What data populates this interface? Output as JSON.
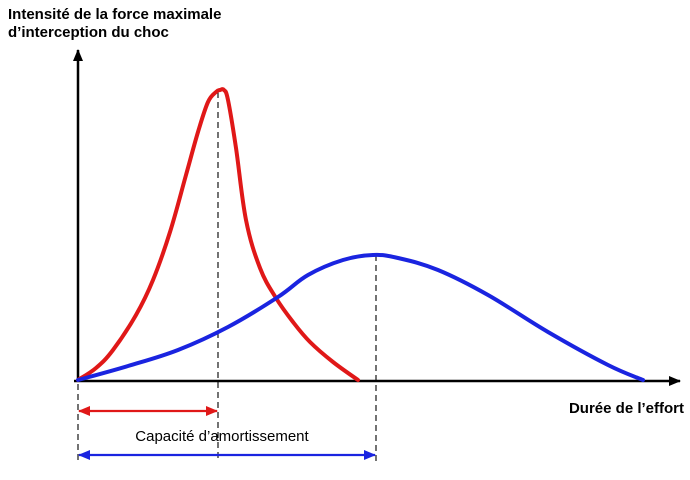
{
  "chart_data": {
    "type": "line",
    "ylabel_lines": [
      "Intensité de la force maximale",
      "d’interception du choc"
    ],
    "xlabel": "Durée de l’effort",
    "annotation": "Capacité d’amortissement",
    "xlim": [
      0,
      605
    ],
    "ylim": [
      0,
      290
    ],
    "grid": false,
    "legend": "none",
    "colors": {
      "axes": "#000000",
      "red_series": "#e01818",
      "blue_series": "#1a24e0",
      "red_arrow": "#e01818",
      "blue_arrow": "#1a24e0"
    },
    "series": [
      {
        "color_key": "red_series",
        "x": [
          0,
          18,
          35,
          58,
          75,
          92,
          108,
          120,
          130,
          138,
          142,
          146,
          150,
          158,
          168,
          182,
          198,
          215,
          232,
          255,
          280
        ],
        "y": [
          0,
          12,
          30,
          65,
          100,
          148,
          205,
          248,
          278,
          288,
          290,
          290,
          280,
          232,
          160,
          112,
          82,
          58,
          38,
          18,
          0
        ]
      },
      {
        "color_key": "blue_series",
        "x": [
          0,
          50,
          100,
          150,
          200,
          230,
          265,
          295,
          320,
          360,
          410,
          470,
          530,
          565
        ],
        "y": [
          0,
          14,
          30,
          53,
          83,
          105,
          120,
          125,
          122,
          110,
          85,
          48,
          15,
          0
        ]
      }
    ],
    "peak_markers": [
      {
        "color_key": "red_series",
        "x": 140,
        "y": 288
      },
      {
        "color_key": "blue_series",
        "x": 298,
        "y": 125
      }
    ],
    "ranges": [
      {
        "color_key": "red_arrow",
        "x_start": 0,
        "x_end": 140
      },
      {
        "color_key": "blue_arrow",
        "x_start": 0,
        "x_end": 298
      }
    ]
  }
}
